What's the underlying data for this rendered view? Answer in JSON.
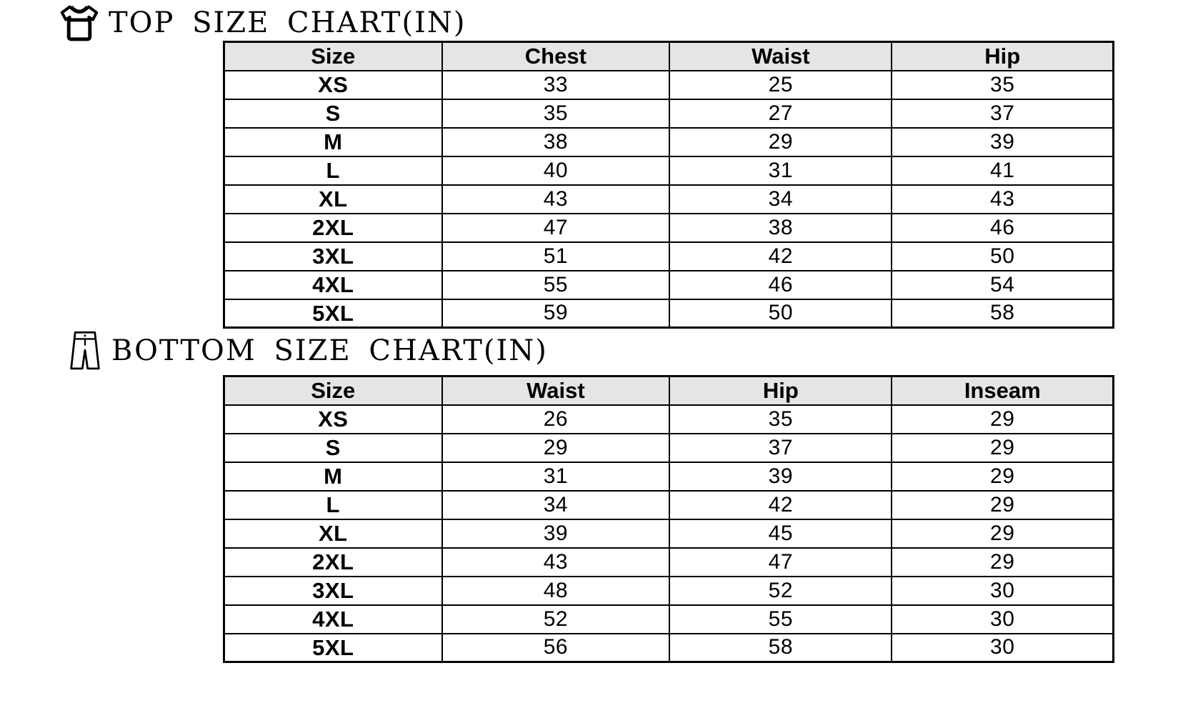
{
  "page": {
    "background": "#ffffff",
    "text_color": "#000000",
    "header_bg": "#e5e5e5",
    "border_color": "#000000"
  },
  "chart_data": [
    {
      "type": "table",
      "title": "TOP SIZE CHART(IN)",
      "icon": "tshirt-icon",
      "unit": "IN",
      "columns": [
        "Size",
        "Chest",
        "Waist",
        "Hip"
      ],
      "rows": [
        [
          "XS",
          33,
          25,
          35
        ],
        [
          "S",
          35,
          27,
          37
        ],
        [
          "M",
          38,
          29,
          39
        ],
        [
          "L",
          40,
          31,
          41
        ],
        [
          "XL",
          43,
          34,
          43
        ],
        [
          "2XL",
          47,
          38,
          46
        ],
        [
          "3XL",
          51,
          42,
          50
        ],
        [
          "4XL",
          55,
          46,
          54
        ],
        [
          "5XL",
          59,
          50,
          58
        ]
      ]
    },
    {
      "type": "table",
      "title": "BOTTOM SIZE CHART(IN)",
      "icon": "pants-icon",
      "unit": "IN",
      "columns": [
        "Size",
        "Waist",
        "Hip",
        "Inseam"
      ],
      "rows": [
        [
          "XS",
          26,
          35,
          29
        ],
        [
          "S",
          29,
          37,
          29
        ],
        [
          "M",
          31,
          39,
          29
        ],
        [
          "L",
          34,
          42,
          29
        ],
        [
          "XL",
          39,
          45,
          29
        ],
        [
          "2XL",
          43,
          47,
          29
        ],
        [
          "3XL",
          48,
          52,
          30
        ],
        [
          "4XL",
          52,
          55,
          30
        ],
        [
          "5XL",
          56,
          58,
          30
        ]
      ]
    }
  ]
}
